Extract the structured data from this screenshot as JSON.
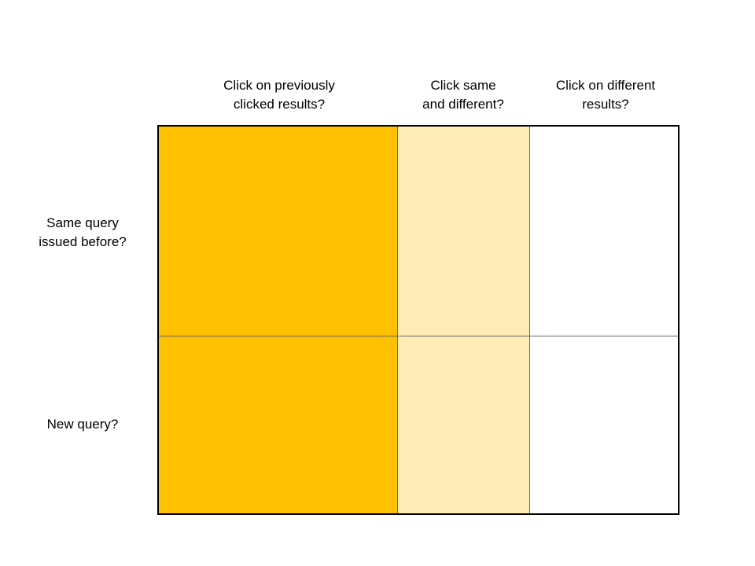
{
  "columns": [
    {
      "line1": "Click on previously",
      "line2": "clicked results?"
    },
    {
      "line1": "Click same",
      "line2": "and different?"
    },
    {
      "line1": "Click on different",
      "line2": "results?"
    }
  ],
  "rows": [
    {
      "line1": "Same query",
      "line2": "issued before?"
    },
    {
      "line1": "New query?"
    }
  ],
  "colors": {
    "column_1_fill": "#FFC000",
    "column_2_fill": "#FFEBB5",
    "column_3_fill": "#FFFFFF",
    "grid_border": "#000000",
    "divider": "#666666"
  }
}
